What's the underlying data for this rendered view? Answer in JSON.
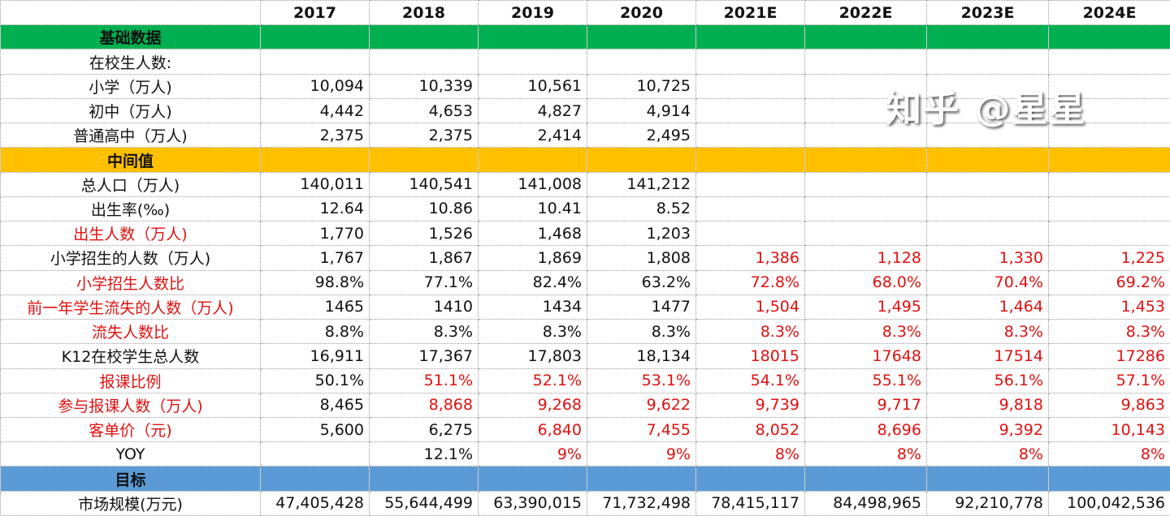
{
  "colors": {
    "basic": "#00B050",
    "intermediate": "#FFC000",
    "target": "#5B9BD5",
    "highlight_text": "#E01010"
  },
  "columns": [
    "2017",
    "2018",
    "2019",
    "2020",
    "2021E",
    "2022E",
    "2023E",
    "2024E"
  ],
  "rows": [
    {
      "type": "section",
      "label": "基础数据",
      "color": "#00B050"
    },
    {
      "label": "在校生人数:",
      "values": [
        "",
        "",
        "",
        "",
        "",
        "",
        "",
        ""
      ]
    },
    {
      "label": "小学（万人)",
      "values": [
        "10,094",
        "10,339",
        "10,561",
        "10,725",
        "",
        "",
        "",
        ""
      ]
    },
    {
      "label": "初中（万人)",
      "values": [
        "4,442",
        "4,653",
        "4,827",
        "4,914",
        "",
        "",
        "",
        ""
      ]
    },
    {
      "label": "普通高中（万人)",
      "values": [
        "2,375",
        "2,375",
        "2,414",
        "2,495",
        "",
        "",
        "",
        ""
      ]
    },
    {
      "type": "section",
      "label": "中间值",
      "color": "#FFC000"
    },
    {
      "label": "总人口（万人)",
      "values": [
        "140,011",
        "140,541",
        "141,008",
        "141,212",
        "",
        "",
        "",
        ""
      ]
    },
    {
      "label": "出生率(‰)",
      "values": [
        "12.64",
        "10.86",
        "10.41",
        "8.52",
        "",
        "",
        "",
        ""
      ]
    },
    {
      "label": "出生人数（万人)",
      "label_red": true,
      "values": [
        "1,770",
        "1,526",
        "1,468",
        "1,203",
        "",
        "",
        "",
        ""
      ]
    },
    {
      "label": "小学招生的人数（万人)",
      "values": [
        "1,767",
        "1,867",
        "1,869",
        "1,808",
        "1,386",
        "1,128",
        "1,330",
        "1,225"
      ],
      "red": [
        0,
        0,
        0,
        0,
        1,
        1,
        1,
        1
      ]
    },
    {
      "label": "小学招生人数比",
      "label_red": true,
      "values": [
        "98.8%",
        "77.1%",
        "82.4%",
        "63.2%",
        "72.8%",
        "68.0%",
        "70.4%",
        "69.2%"
      ],
      "red": [
        0,
        0,
        0,
        0,
        1,
        1,
        1,
        1
      ]
    },
    {
      "label": "前一年学生流失的人数（万人)",
      "label_red": true,
      "values": [
        "1465",
        "1410",
        "1434",
        "1477",
        "1,504",
        "1,495",
        "1,464",
        "1,453"
      ],
      "red": [
        0,
        0,
        0,
        0,
        1,
        1,
        1,
        1
      ]
    },
    {
      "label": "流失人数比",
      "label_red": true,
      "values": [
        "8.8%",
        "8.3%",
        "8.3%",
        "8.3%",
        "8.3%",
        "8.3%",
        "8.3%",
        "8.3%"
      ],
      "red": [
        0,
        0,
        0,
        0,
        1,
        1,
        1,
        1
      ]
    },
    {
      "label": "K12在校学生总人数",
      "values": [
        "16,911",
        "17,367",
        "17,803",
        "18,134",
        "18015",
        "17648",
        "17514",
        "17286"
      ],
      "red": [
        0,
        0,
        0,
        0,
        1,
        1,
        1,
        1
      ]
    },
    {
      "label": "报课比例",
      "label_red": true,
      "values": [
        "50.1%",
        "51.1%",
        "52.1%",
        "53.1%",
        "54.1%",
        "55.1%",
        "56.1%",
        "57.1%"
      ],
      "red": [
        0,
        1,
        1,
        1,
        1,
        1,
        1,
        1
      ]
    },
    {
      "label": "参与报课人数（万人)",
      "label_red": true,
      "values": [
        "8,465",
        "8,868",
        "9,268",
        "9,622",
        "9,739",
        "9,717",
        "9,818",
        "9,863"
      ],
      "red": [
        0,
        1,
        1,
        1,
        1,
        1,
        1,
        1
      ]
    },
    {
      "label": "客单价（元)",
      "label_red": true,
      "values": [
        "5,600",
        "6,275",
        "6,840",
        "7,455",
        "8,052",
        "8,696",
        "9,392",
        "10,143"
      ],
      "red": [
        0,
        0,
        1,
        1,
        1,
        1,
        1,
        1
      ]
    },
    {
      "label": "YOY",
      "values": [
        "",
        "12.1%",
        "9%",
        "9%",
        "8%",
        "8%",
        "8%",
        "8%"
      ],
      "red": [
        0,
        0,
        1,
        1,
        1,
        1,
        1,
        1
      ]
    },
    {
      "type": "section",
      "label": "目标",
      "color": "#5B9BD5"
    },
    {
      "label": "市场规模(万元)",
      "values": [
        "47,405,428",
        "55,644,499",
        "63,390,015",
        "71,732,498",
        "78,415,117",
        "84,498,965",
        "92,210,778",
        "100,042,536"
      ]
    }
  ],
  "watermark": "知乎 @星星"
}
